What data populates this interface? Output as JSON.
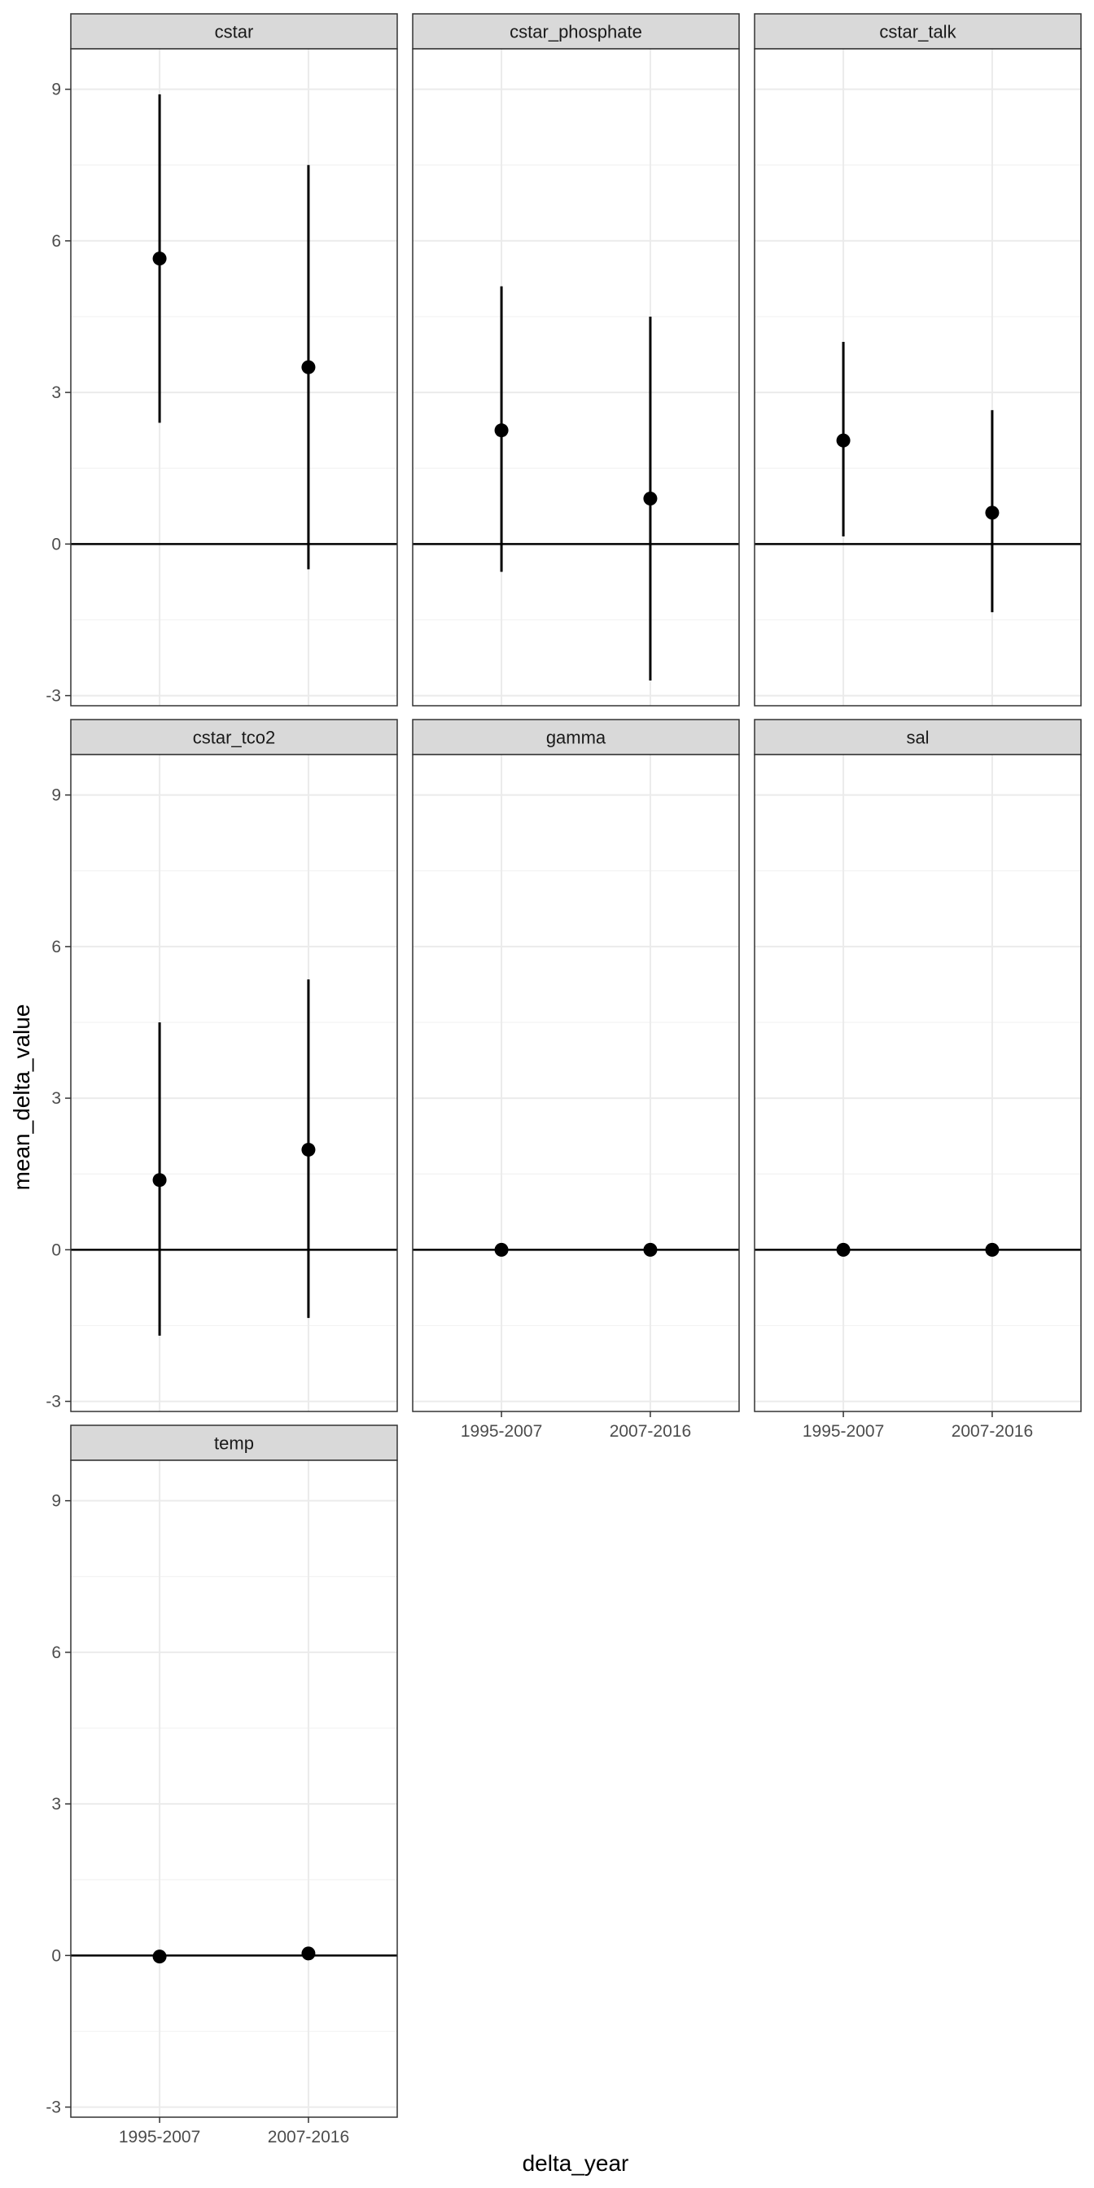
{
  "chart_data": {
    "type": "scatter",
    "geom": "point-with-error-bars",
    "facet_layout": "wrap, 3 columns, shared axes",
    "xlabel": "delta_year",
    "ylabel": "mean_delta_value",
    "x_categories": [
      "1995-2007",
      "2007-2016"
    ],
    "ylim": [
      -3.2,
      9.8
    ],
    "y_ticks": [
      -3,
      0,
      3,
      6,
      9
    ],
    "hline_y": 0,
    "grid": true,
    "theme": "bw",
    "colors": {
      "point": "#000000",
      "strip_bg": "#d9d9d9",
      "grid": "#ebebeb",
      "panel_border": "#333333"
    },
    "panels": [
      {
        "title": "cstar",
        "points": [
          {
            "x": "1995-2007",
            "y": 5.65,
            "ymin": 2.4,
            "ymax": 8.9
          },
          {
            "x": "2007-2016",
            "y": 3.5,
            "ymin": -0.5,
            "ymax": 7.5
          }
        ]
      },
      {
        "title": "cstar_phosphate",
        "points": [
          {
            "x": "1995-2007",
            "y": 2.25,
            "ymin": -0.55,
            "ymax": 5.1
          },
          {
            "x": "2007-2016",
            "y": 0.9,
            "ymin": -2.7,
            "ymax": 4.5
          }
        ]
      },
      {
        "title": "cstar_talk",
        "points": [
          {
            "x": "1995-2007",
            "y": 2.05,
            "ymin": 0.15,
            "ymax": 4.0
          },
          {
            "x": "2007-2016",
            "y": 0.62,
            "ymin": -1.35,
            "ymax": 2.65
          }
        ]
      },
      {
        "title": "cstar_tco2",
        "points": [
          {
            "x": "1995-2007",
            "y": 1.38,
            "ymin": -1.7,
            "ymax": 4.5
          },
          {
            "x": "2007-2016",
            "y": 1.98,
            "ymin": -1.35,
            "ymax": 5.35
          }
        ]
      },
      {
        "title": "gamma",
        "points": [
          {
            "x": "1995-2007",
            "y": 0.0,
            "ymin": 0.0,
            "ymax": 0.0
          },
          {
            "x": "2007-2016",
            "y": 0.0,
            "ymin": 0.0,
            "ymax": 0.0
          }
        ]
      },
      {
        "title": "sal",
        "points": [
          {
            "x": "1995-2007",
            "y": 0.0,
            "ymin": 0.0,
            "ymax": 0.0
          },
          {
            "x": "2007-2016",
            "y": 0.0,
            "ymin": 0.0,
            "ymax": 0.0
          }
        ]
      },
      {
        "title": "temp",
        "points": [
          {
            "x": "1995-2007",
            "y": -0.02,
            "ymin": -0.02,
            "ymax": -0.02
          },
          {
            "x": "2007-2016",
            "y": 0.04,
            "ymin": 0.04,
            "ymax": 0.04
          }
        ]
      }
    ]
  }
}
